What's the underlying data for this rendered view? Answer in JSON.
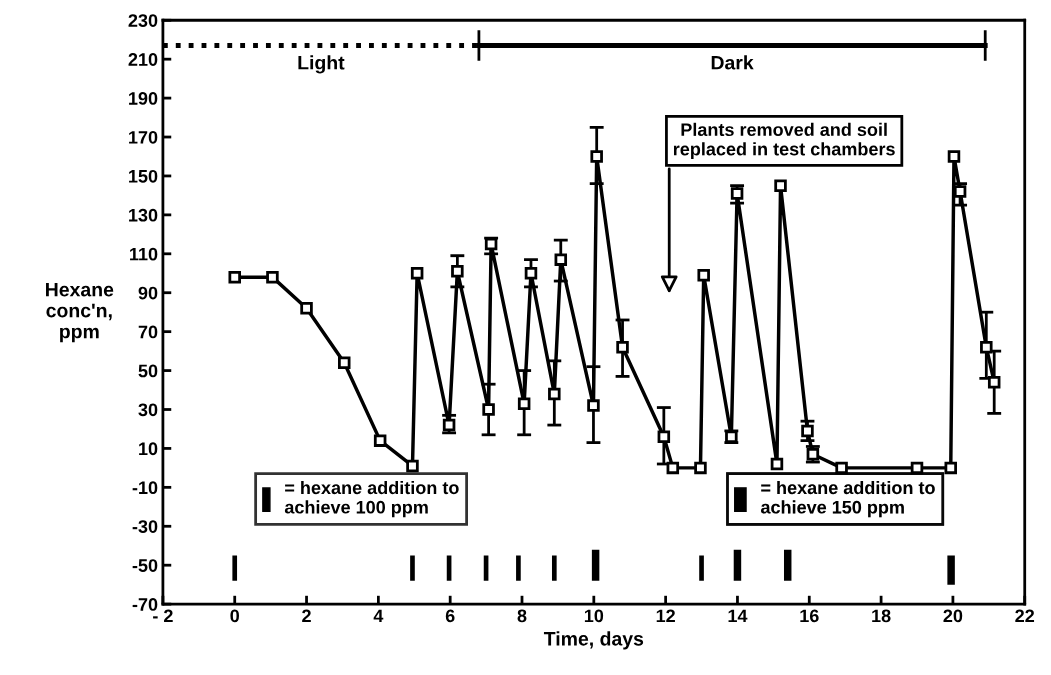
{
  "chart_data": {
    "type": "line",
    "xlabel": "Time, days",
    "ylabel": "Hexane\nconc'n,\nppm",
    "xlim": [
      -2,
      22
    ],
    "ylim": [
      -70,
      230
    ],
    "xticks": [
      {
        "value": -2,
        "label": "- 2"
      },
      0,
      2,
      4,
      6,
      8,
      10,
      12,
      14,
      16,
      18,
      20,
      22
    ],
    "yticks": [
      -70,
      -50,
      -30,
      -10,
      10,
      30,
      50,
      70,
      90,
      110,
      130,
      150,
      170,
      190,
      210,
      230
    ],
    "grid": false,
    "legend": "bottom",
    "marker": "square",
    "line_style": "solid",
    "series": [
      {
        "color": "#000000",
        "x": [
          0,
          1.05,
          2,
          3.05,
          4.05,
          4.95,
          5.08,
          5.97,
          6.2,
          7.07,
          7.14,
          8.06,
          8.25,
          8.9,
          9.08,
          9.99,
          10.08,
          10.8,
          11.95,
          12.2,
          12.97,
          13.06,
          13.83,
          13.99,
          15.1,
          15.2,
          15.95,
          16.1,
          16.9,
          19.0,
          19.94,
          20.03,
          20.2,
          20.93,
          21.15
        ],
        "values": [
          98,
          98,
          82,
          54,
          14,
          1,
          100,
          22,
          101,
          30,
          115,
          33,
          100,
          38,
          107,
          32,
          160,
          62,
          16,
          0,
          0,
          99,
          16,
          141,
          2,
          145,
          19,
          7,
          0,
          0,
          0,
          160,
          142,
          62,
          44
        ],
        "errors": [
          null,
          null,
          null,
          null,
          null,
          null,
          null,
          [
            18,
            27
          ],
          [
            93,
            109
          ],
          [
            17,
            43
          ],
          [
            110,
            118
          ],
          [
            17,
            50
          ],
          [
            93,
            107
          ],
          [
            22,
            55
          ],
          [
            96,
            117
          ],
          [
            13,
            52
          ],
          [
            146,
            175
          ],
          [
            47,
            76
          ],
          [
            2,
            31
          ],
          null,
          null,
          null,
          [
            13,
            19
          ],
          [
            136,
            145
          ],
          null,
          null,
          [
            14,
            24
          ],
          [
            3,
            11
          ],
          null,
          null,
          null,
          null,
          [
            135,
            146
          ],
          [
            46,
            80
          ],
          [
            28,
            60
          ]
        ]
      },
      {
        "type": "bar",
        "name": "= hexane addition to\nachieve 100 ppm",
        "color": "#000000",
        "x": [
          0,
          4.95,
          5.97,
          7.0,
          7.9,
          8.9,
          13.0
        ],
        "base": [
          -58,
          -58,
          -58,
          -58,
          -58,
          -58,
          -58
        ],
        "values": [
          13,
          13,
          13,
          13,
          13,
          13,
          13
        ]
      },
      {
        "type": "bar",
        "name": "= hexane addition to\nachieve 150 ppm",
        "color": "#000000",
        "x": [
          10.05,
          14.0,
          15.4,
          19.95
        ],
        "base": [
          -58,
          -58,
          -58,
          -60
        ],
        "values": [
          16,
          16,
          16,
          15
        ]
      },
      {
        "name": "Light",
        "color": "#000000",
        "line_style": "dotted",
        "marker": "none",
        "x": [
          -2,
          6.8
        ],
        "values": [
          217,
          217
        ]
      },
      {
        "name": "Dark",
        "color": "#000000",
        "line_style": "solid",
        "marker": "none",
        "x": [
          6.8,
          20.9
        ],
        "values": [
          217,
          217
        ]
      }
    ],
    "annotations": [
      "Plants removed and soil\nreplaced in test chambers"
    ]
  }
}
